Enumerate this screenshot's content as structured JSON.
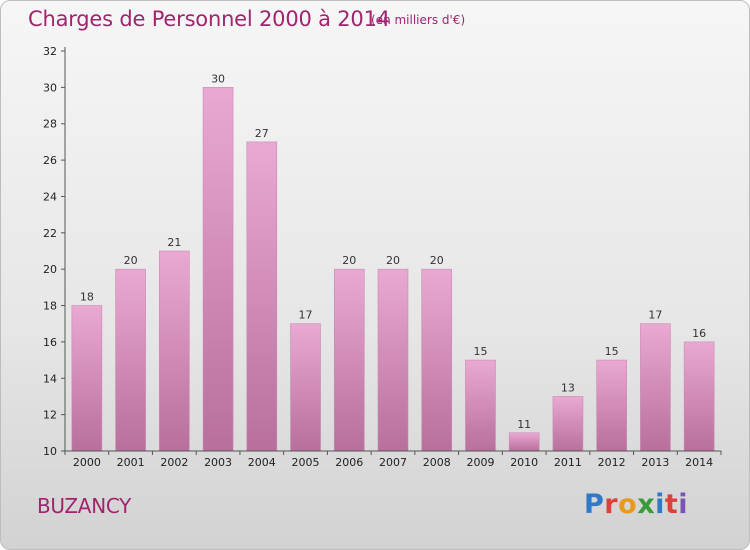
{
  "header": {
    "title": "Charges de Personnel 2000 à 2014",
    "subtitle": "(en milliers d'€)"
  },
  "footer": {
    "town": "BUZANCY",
    "logo": "Proxiti"
  },
  "colors": {
    "text_accent": "#a0246e",
    "bar_light": "#e9a9d2",
    "bar_dark": "#b86f9c",
    "logo_letters": [
      "#2f79c7",
      "#e0403a",
      "#e89a1c",
      "#3a9a3a",
      "#2f79c7",
      "#e0403a",
      "#7a55b5"
    ]
  },
  "chart_data": {
    "type": "bar",
    "title": "Charges de Personnel 2000 à 2014",
    "subtitle": "(en milliers d'€)",
    "categories": [
      "2000",
      "2001",
      "2002",
      "2003",
      "2004",
      "2005",
      "2006",
      "2007",
      "2008",
      "2009",
      "2010",
      "2011",
      "2012",
      "2013",
      "2014"
    ],
    "values": [
      18,
      20,
      21,
      30,
      27,
      17,
      20,
      20,
      20,
      15,
      11,
      13,
      15,
      17,
      16
    ],
    "ylim": [
      10,
      32
    ],
    "yticks": [
      10,
      12,
      14,
      16,
      18,
      20,
      22,
      24,
      26,
      28,
      30,
      32
    ],
    "grid": false,
    "legend": "none"
  }
}
